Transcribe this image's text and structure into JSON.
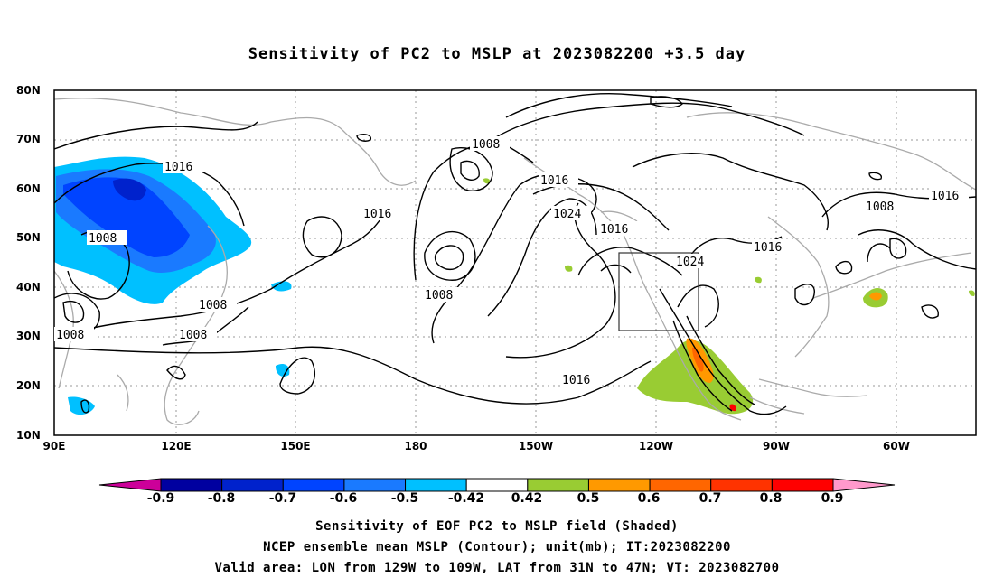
{
  "title": "Sensitivity of PC2 to MSLP at 2023082200 +3.5 day",
  "lat_labels": [
    "80N",
    "70N",
    "60N",
    "50N",
    "40N",
    "30N",
    "20N",
    "10N"
  ],
  "lon_labels": [
    "90E",
    "120E",
    "150E",
    "180",
    "150W",
    "120W",
    "90W",
    "60W"
  ],
  "contour_labels": [
    "1016",
    "1008",
    "1008",
    "1008",
    "1008",
    "1008",
    "1016",
    "1024",
    "1016",
    "1024",
    "1016",
    "1008",
    "1016",
    "1016",
    "1008",
    "1016"
  ],
  "colorbar": {
    "labels": [
      "-0.9",
      "-0.8",
      "-0.7",
      "-0.6",
      "-0.5",
      "-0.42",
      "0.42",
      "0.5",
      "0.6",
      "0.7",
      "0.8",
      "0.9"
    ],
    "colors": [
      "#cc0099",
      "#0000a0",
      "#0022cc",
      "#0044ff",
      "#1a7aff",
      "#00c0ff",
      "#ffffff",
      "#99cc33",
      "#ff9900",
      "#ff6600",
      "#ff3300",
      "#ff0000",
      "#ff99cc"
    ]
  },
  "captions": [
    "Sensitivity of EOF PC2 to MSLP field (Shaded)",
    "NCEP ensemble mean MSLP (Contour); unit(mb); IT:2023082200",
    "Valid area: LON from 129W to 109W, LAT from 31N to 47N; VT: 2023082700"
  ]
}
